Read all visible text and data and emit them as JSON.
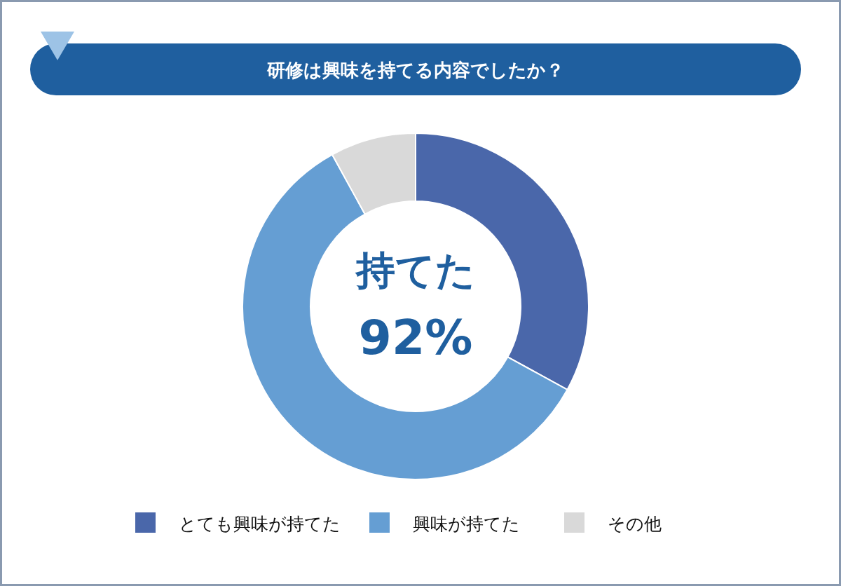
{
  "chart_data": {
    "type": "donut",
    "title": "研修は興味を持てる内容でしたか？",
    "categories": [
      "とても興味が持てた",
      "興味が持てた",
      "その他"
    ],
    "values": [
      33,
      59,
      8
    ],
    "colors": [
      "#4a67aa",
      "#659ed3",
      "#d9d9d9"
    ],
    "legend": "bottom",
    "annotations": [
      "持てた",
      "92%"
    ]
  }
}
